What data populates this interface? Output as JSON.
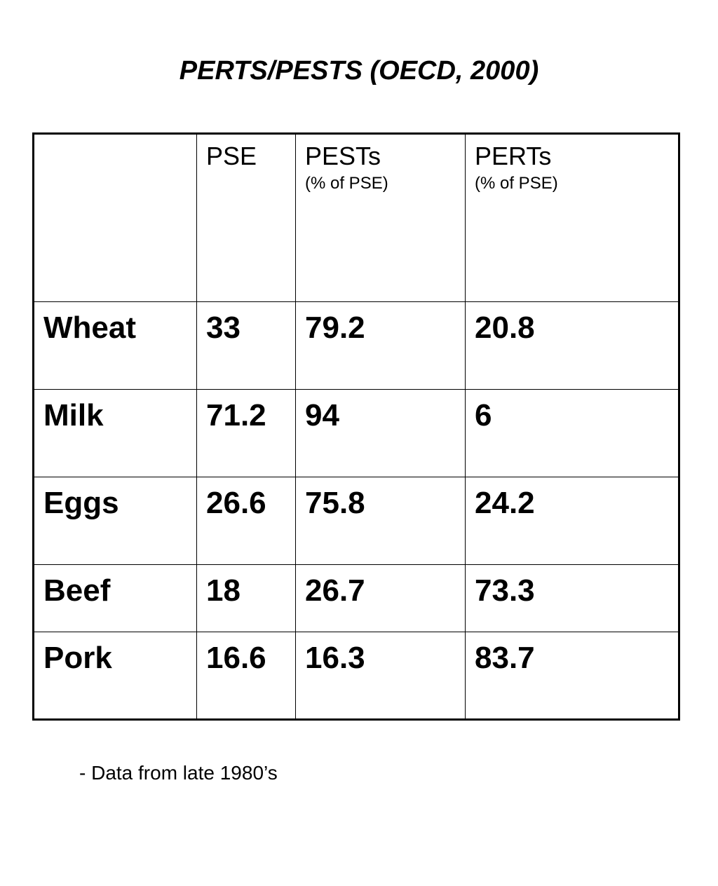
{
  "title": "PERTS/PESTS (OECD, 2000)",
  "table": {
    "headers": [
      {
        "main": "",
        "sub": ""
      },
      {
        "main": "PSE",
        "sub": ""
      },
      {
        "main": "PESTs",
        "sub": "(% of PSE)"
      },
      {
        "main": "PERTs",
        "sub": "(% of PSE)"
      }
    ],
    "rows": [
      {
        "label": "Wheat",
        "pse": "33",
        "pests": "79.2",
        "perts": "20.8"
      },
      {
        "label": "Milk",
        "pse": "71.2",
        "pests": "94",
        "perts": "6"
      },
      {
        "label": "Eggs",
        "pse": "26.6",
        "pests": "75.8",
        "perts": "24.2"
      },
      {
        "label": "Beef",
        "pse": "18",
        "pests": "26.7",
        "perts": "73.3"
      },
      {
        "label": "Pork",
        "pse": "16.6",
        "pests": "16.3",
        "perts": "83.7"
      }
    ]
  },
  "footnote": "- Data from late 1980’s"
}
